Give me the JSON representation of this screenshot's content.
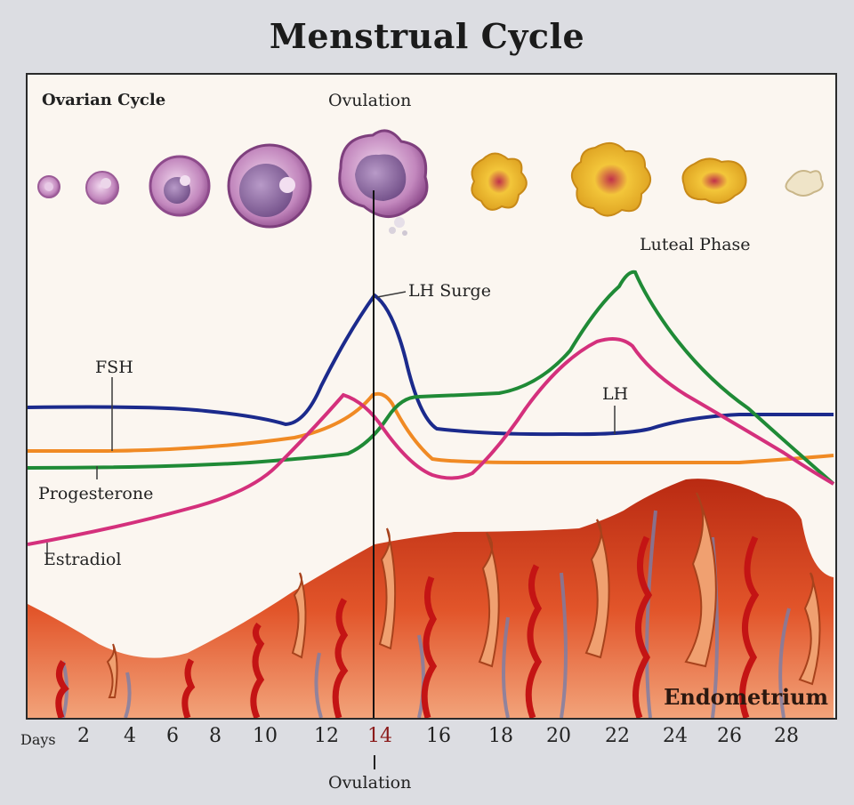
{
  "title": "Menstrual Cycle",
  "labels": {
    "ovarian_cycle": "Ovarian Cycle",
    "ovulation_top": "Ovulation",
    "luteal_phase": "Luteal Phase",
    "lh_surge": "LH Surge",
    "fsh": "FSH",
    "lh": "LH",
    "progesterone": "Progesterone",
    "estradiol": "Estradiol",
    "endometrium": "Endometrium",
    "ovulation_bottom": "Ovulation",
    "days": "Days"
  },
  "day_ticks": [
    "2",
    "4",
    "6",
    "8",
    "10",
    "12",
    "14",
    "16",
    "18",
    "20",
    "22",
    "24",
    "26",
    "28"
  ],
  "highlight_day": "14",
  "colors": {
    "fsh": "#f08a24",
    "lh": "#1b2a8c",
    "progesterone": "#1f8a36",
    "estradiol": "#d4307c",
    "endometrium": "#c83a1c",
    "follicle": "#b86fb0",
    "corpus_luteum": "#f3c63a"
  },
  "icons": {
    "follicle_stages": [
      "primordial-follicle-icon",
      "primary-follicle-icon",
      "secondary-follicle-icon",
      "graafian-follicle-icon",
      "ovulating-follicle-icon"
    ],
    "luteal_stages": [
      "corpus-luteum-early-icon",
      "corpus-luteum-mature-icon",
      "corpus-luteum-regressing-icon",
      "corpus-albicans-icon"
    ]
  }
}
